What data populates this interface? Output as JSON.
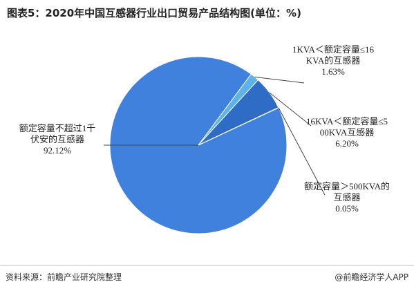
{
  "chart_data": {
    "type": "pie",
    "title": "图表5：2020年中国互感器行业出口贸易产品结构图(单位：%)",
    "categories": [
      "额定容量不超过1千伏安的互感器",
      "1KVA＜额定容量≤16KVA的互感器",
      "16KVA＜额定容量≤500KVA互感器",
      "额定容量＞500KVA的互感器"
    ],
    "values": [
      92.12,
      1.63,
      6.2,
      0.05
    ],
    "value_labels": [
      "92.12%",
      "1.63%",
      "6.20%",
      "0.05%"
    ],
    "colors": [
      "#3f81dc",
      "#5cb3ea",
      "#2f6cc6",
      "#8fc7f0"
    ],
    "source": "资料来源：前瞻产业研究院整理",
    "footer": "@前瞻经济学人APP"
  }
}
